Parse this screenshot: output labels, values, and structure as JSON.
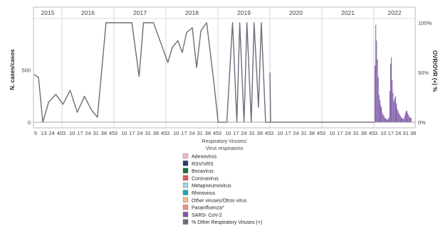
{
  "chart_data": {
    "type": "bar",
    "ylabel_left": "N. cases/casos",
    "ylabel_right": "OVR/OVR (+) %",
    "xlabel_lines": [
      "Respiratory Viruses/",
      "Virus respiratorio"
    ],
    "ylim_left": [
      0,
      950
    ],
    "yticks_left": [
      0,
      500
    ],
    "ylim_right": [
      0,
      100
    ],
    "yticks_right": [
      "0%",
      "50%",
      "100%"
    ],
    "grid": false,
    "legend_position": "bottom",
    "years": [
      {
        "label": "2015",
        "ticks": [
          "5",
          "13",
          "24",
          "40"
        ]
      },
      {
        "label": "2016",
        "ticks": [
          "3",
          "10",
          "17",
          "24",
          "31",
          "38",
          "45"
        ]
      },
      {
        "label": "2017",
        "ticks": [
          "3",
          "10",
          "17",
          "24",
          "31",
          "38",
          "45"
        ]
      },
      {
        "label": "2018",
        "ticks": [
          "3",
          "10",
          "17",
          "24",
          "31",
          "38",
          "45"
        ]
      },
      {
        "label": "2019",
        "ticks": [
          "3",
          "10",
          "17",
          "24",
          "31",
          "38",
          "45"
        ]
      },
      {
        "label": "2020",
        "ticks": [
          "3",
          "10",
          "17",
          "24",
          "31",
          "38",
          "45"
        ]
      },
      {
        "label": "2021",
        "ticks": [
          "3",
          "10",
          "17",
          "24",
          "31",
          "38",
          "45"
        ]
      },
      {
        "label": "2022",
        "ticks": [
          "3",
          "10",
          "17",
          "24",
          "31",
          "38"
        ]
      }
    ],
    "series": [
      {
        "name": "Adenovirus",
        "color": "#f4b6c2"
      },
      {
        "name": "RSV/VRS",
        "color": "#1f3c70"
      },
      {
        "name": "Bocavirus",
        "color": "#1e6b34"
      },
      {
        "name": "Coronavirus",
        "color": "#e05a5a"
      },
      {
        "name": "Metapneumovirus",
        "color": "#9fd0dc"
      },
      {
        "name": "Rhinovirus",
        "color": "#1aa8b0"
      },
      {
        "name": "Other viruses/Otros virus",
        "color": "#f5b98c"
      },
      {
        "name": "Parainfluenza*",
        "color": "#f08c8c"
      },
      {
        "name": "SARS- CoV-2",
        "color": "#7e5aa8"
      },
      {
        "name": "% Other Respiratory Viruses (+)",
        "color": "#6b6f7a"
      }
    ],
    "sars_cov2_bars": {
      "year": "2022",
      "values": [
        540,
        930,
        780,
        600,
        430,
        260,
        210,
        160,
        140,
        90,
        70,
        60,
        40,
        35,
        30,
        25,
        30,
        45,
        300,
        560,
        620,
        400,
        280,
        200,
        230,
        250,
        180,
        130,
        110,
        90,
        70,
        60,
        45,
        40,
        35,
        30,
        60,
        90,
        110,
        105,
        80,
        65,
        50,
        45,
        40
      ]
    },
    "percent_line_2015_2019": [
      {
        "x": 0.0,
        "y": 48
      },
      {
        "x": 0.3,
        "y": 45
      },
      {
        "x": 0.6,
        "y": 0
      },
      {
        "x": 1.0,
        "y": 20
      },
      {
        "x": 1.5,
        "y": 28
      },
      {
        "x": 2.0,
        "y": 18
      },
      {
        "x": 2.5,
        "y": 32
      },
      {
        "x": 3.0,
        "y": 10
      },
      {
        "x": 3.5,
        "y": 26
      },
      {
        "x": 4.0,
        "y": 12
      },
      {
        "x": 4.4,
        "y": 5
      },
      {
        "x": 5.0,
        "y": 100
      },
      {
        "x": 5.6,
        "y": 100
      },
      {
        "x": 6.2,
        "y": 100
      },
      {
        "x": 6.8,
        "y": 100
      },
      {
        "x": 7.3,
        "y": 46
      },
      {
        "x": 7.6,
        "y": 100
      },
      {
        "x": 8.3,
        "y": 100
      },
      {
        "x": 8.8,
        "y": 80
      },
      {
        "x": 9.3,
        "y": 60
      },
      {
        "x": 9.6,
        "y": 75
      },
      {
        "x": 10.0,
        "y": 82
      },
      {
        "x": 10.3,
        "y": 70
      },
      {
        "x": 10.6,
        "y": 90
      },
      {
        "x": 11.0,
        "y": 95
      },
      {
        "x": 11.3,
        "y": 55
      },
      {
        "x": 11.6,
        "y": 92
      },
      {
        "x": 12.0,
        "y": 100
      },
      {
        "x": 12.5,
        "y": 40
      },
      {
        "x": 12.8,
        "y": 0
      },
      {
        "x": 13.4,
        "y": 0
      },
      {
        "x": 13.8,
        "y": 100
      },
      {
        "x": 14.1,
        "y": 0
      },
      {
        "x": 14.3,
        "y": 100
      },
      {
        "x": 14.6,
        "y": 0
      },
      {
        "x": 14.8,
        "y": 100
      },
      {
        "x": 15.1,
        "y": 0
      },
      {
        "x": 15.3,
        "y": 100
      },
      {
        "x": 15.6,
        "y": 15
      },
      {
        "x": 15.8,
        "y": 100
      },
      {
        "x": 16.1,
        "y": 0
      },
      {
        "x": 16.4,
        "y": 0
      }
    ]
  },
  "legend_items": [
    {
      "label": "Adenovirus",
      "color": "#f4b6c2"
    },
    {
      "label": "RSV/VRS",
      "color": "#1f3c70"
    },
    {
      "label": "Bocavirus",
      "color": "#1e6b34"
    },
    {
      "label": "Coronavirus",
      "color": "#e05a5a"
    },
    {
      "label": "Metapneumovirus",
      "color": "#9fd0dc"
    },
    {
      "label": "Rhinovirus",
      "color": "#1aa8b0"
    },
    {
      "label": "Other viruses/Otros virus",
      "color": "#f5b98c"
    },
    {
      "label": "Parainfluenza*",
      "color": "#f08c8c"
    },
    {
      "label": "SARS- CoV-2",
      "color": "#7e5aa8"
    },
    {
      "label": "% Other Respiratory Viruses (+)",
      "color": "#6b6f7a"
    }
  ]
}
